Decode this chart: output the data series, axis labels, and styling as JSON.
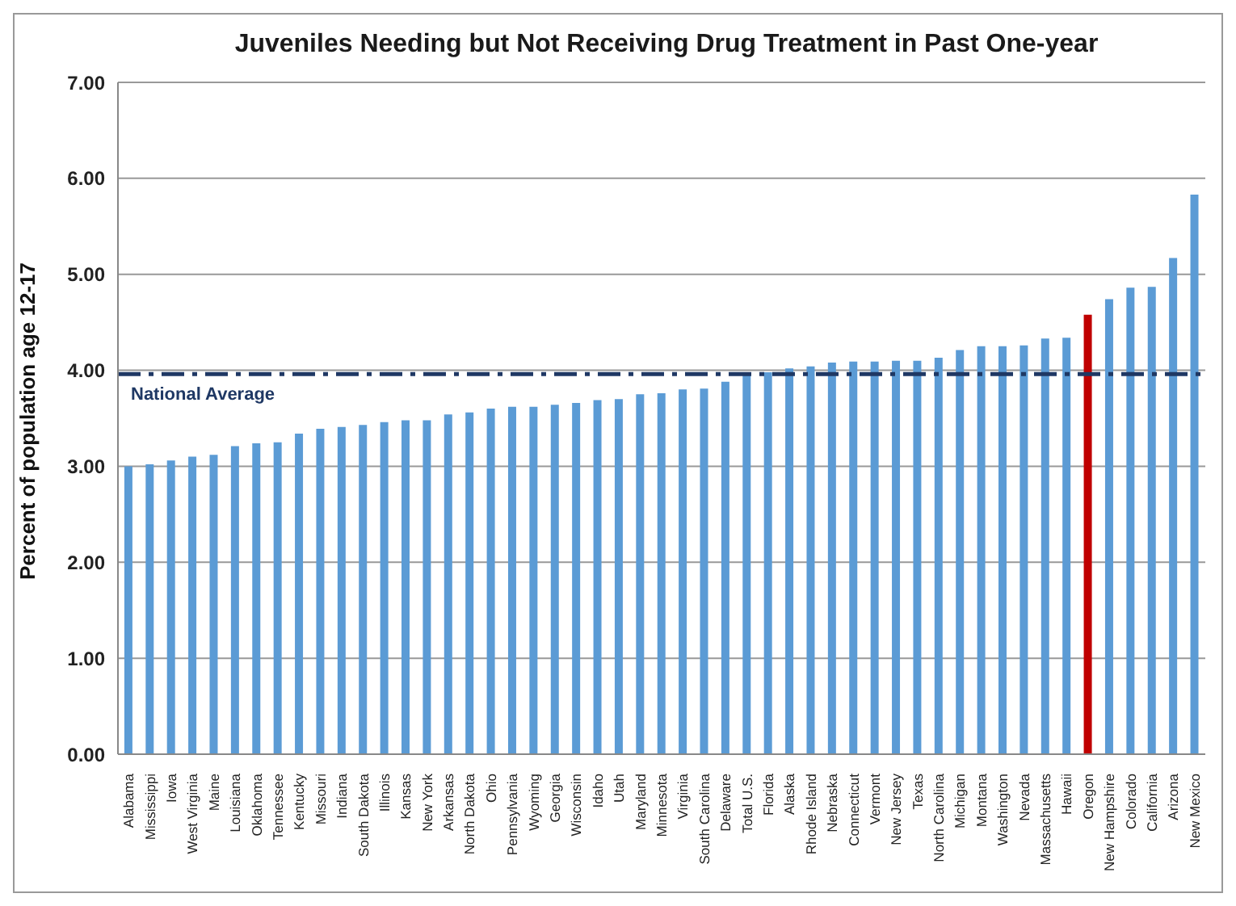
{
  "chart_data": {
    "type": "bar",
    "title": "Juveniles Needing but Not Receiving Drug Treatment in Past One-year",
    "ylabel": "Percent of population age 12-17",
    "categories": [
      "Alabama",
      "Mississippi",
      "Iowa",
      "West Virginia",
      "Maine",
      "Louisiana",
      "Oklahoma",
      "Tennessee",
      "Kentucky",
      "Missouri",
      "Indiana",
      "South Dakota",
      "Illinois",
      "Kansas",
      "New York",
      "Arkansas",
      "North Dakota",
      "Ohio",
      "Pennsylvania",
      "Wyoming",
      "Georgia",
      "Wisconsin",
      "Idaho",
      "Utah",
      "Maryland",
      "Minnesota",
      "Virginia",
      "South Carolina",
      "Delaware",
      "Total U.S.",
      "Florida",
      "Alaska",
      "Rhode Island",
      "Nebraska",
      "Connecticut",
      "Vermont",
      "New Jersey",
      "Texas",
      "North Carolina",
      "Michigan",
      "Montana",
      "Washington",
      "Nevada",
      "Massachusetts",
      "Hawaii",
      "Oregon",
      "New Hampshire",
      "Colorado",
      "California",
      "Arizona",
      "New Mexico"
    ],
    "values": [
      3.0,
      3.02,
      3.06,
      3.1,
      3.12,
      3.21,
      3.24,
      3.25,
      3.34,
      3.39,
      3.41,
      3.43,
      3.46,
      3.48,
      3.48,
      3.54,
      3.56,
      3.6,
      3.62,
      3.62,
      3.64,
      3.66,
      3.69,
      3.7,
      3.75,
      3.76,
      3.8,
      3.81,
      3.88,
      3.96,
      3.98,
      4.02,
      4.04,
      4.08,
      4.09,
      4.09,
      4.1,
      4.1,
      4.13,
      4.21,
      4.25,
      4.25,
      4.26,
      4.33,
      4.34,
      4.58,
      4.74,
      4.86,
      4.87,
      5.17,
      5.83
    ],
    "colors": [
      "#5b9bd5",
      "#5b9bd5",
      "#5b9bd5",
      "#5b9bd5",
      "#5b9bd5",
      "#5b9bd5",
      "#5b9bd5",
      "#5b9bd5",
      "#5b9bd5",
      "#5b9bd5",
      "#5b9bd5",
      "#5b9bd5",
      "#5b9bd5",
      "#5b9bd5",
      "#5b9bd5",
      "#5b9bd5",
      "#5b9bd5",
      "#5b9bd5",
      "#5b9bd5",
      "#5b9bd5",
      "#5b9bd5",
      "#5b9bd5",
      "#5b9bd5",
      "#5b9bd5",
      "#5b9bd5",
      "#5b9bd5",
      "#5b9bd5",
      "#5b9bd5",
      "#5b9bd5",
      "#5b9bd5",
      "#5b9bd5",
      "#5b9bd5",
      "#5b9bd5",
      "#5b9bd5",
      "#5b9bd5",
      "#5b9bd5",
      "#5b9bd5",
      "#5b9bd5",
      "#5b9bd5",
      "#5b9bd5",
      "#5b9bd5",
      "#5b9bd5",
      "#5b9bd5",
      "#5b9bd5",
      "#5b9bd5",
      "#c00000",
      "#5b9bd5",
      "#5b9bd5",
      "#5b9bd5",
      "#5b9bd5",
      "#5b9bd5"
    ],
    "ylim": [
      0,
      7
    ],
    "yticks": [
      {
        "value": 0,
        "label": "0.00"
      },
      {
        "value": 1,
        "label": "1.00"
      },
      {
        "value": 2,
        "label": "2.00"
      },
      {
        "value": 3,
        "label": "3.00"
      },
      {
        "value": 4,
        "label": "4.00"
      },
      {
        "value": 5,
        "label": "5.00"
      },
      {
        "value": 6,
        "label": "6.00"
      },
      {
        "value": 7,
        "label": "7.00"
      }
    ],
    "grid": "y",
    "ref_lines": [
      {
        "axis": "y",
        "value": 3.96,
        "label": "National Average",
        "color": "#1f3864",
        "line_style": "dashed"
      }
    ]
  }
}
